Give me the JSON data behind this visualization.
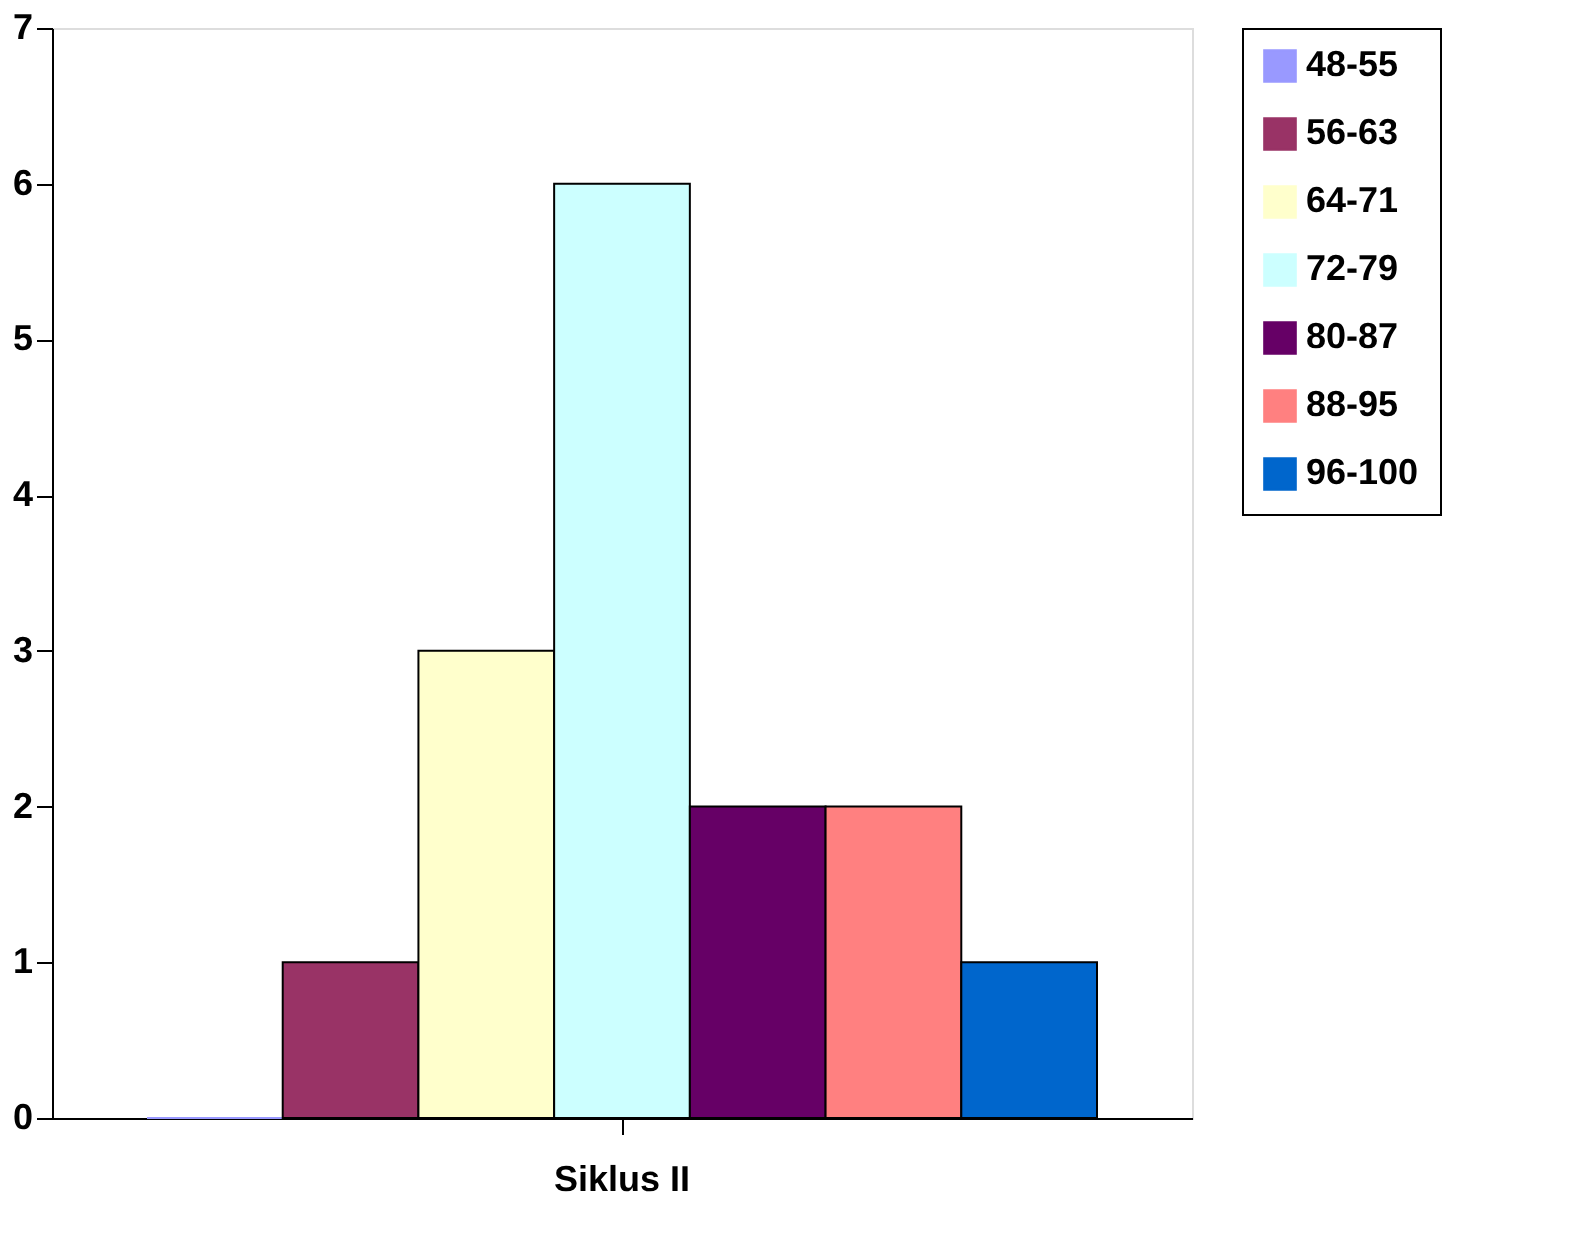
{
  "chart_data": {
    "type": "bar",
    "categories": [
      "Siklus II"
    ],
    "series": [
      {
        "name": "48-55",
        "color": "#9999ff",
        "values": [
          0
        ]
      },
      {
        "name": "56-63",
        "color": "#993366",
        "values": [
          1
        ]
      },
      {
        "name": "64-71",
        "color": "#ffffcc",
        "values": [
          3
        ]
      },
      {
        "name": "72-79",
        "color": "#ccffff",
        "values": [
          6
        ]
      },
      {
        "name": "80-87",
        "color": "#660066",
        "values": [
          2
        ]
      },
      {
        "name": "88-95",
        "color": "#ff8080",
        "values": [
          2
        ]
      },
      {
        "name": "96-100",
        "color": "#0066cc",
        "values": [
          1
        ]
      }
    ],
    "ylim": [
      0,
      7
    ],
    "yticks": [
      0,
      1,
      2,
      3,
      4,
      5,
      6,
      7
    ],
    "grid": false,
    "legend": "right"
  }
}
